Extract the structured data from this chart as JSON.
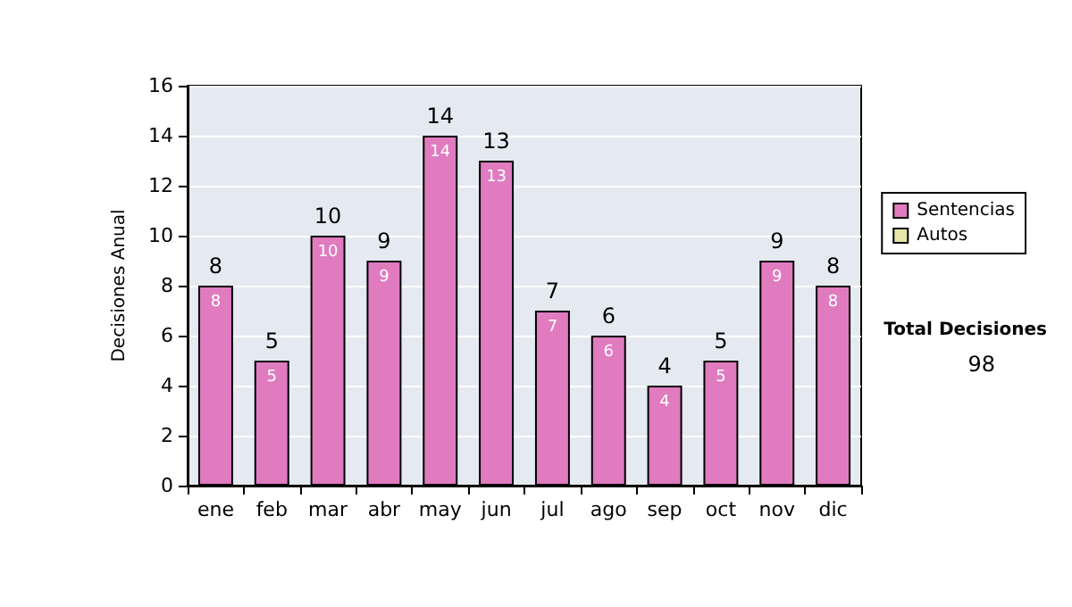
{
  "chart_data": {
    "type": "bar",
    "ylabel": "Decisiones Anual",
    "categories": [
      "ene",
      "feb",
      "mar",
      "abr",
      "may",
      "jun",
      "jul",
      "ago",
      "sep",
      "oct",
      "nov",
      "dic"
    ],
    "series": [
      {
        "name": "Sentencias",
        "color": "#e07bc0",
        "values": [
          8,
          5,
          10,
          9,
          14,
          13,
          7,
          6,
          4,
          5,
          9,
          8
        ],
        "value_labels": [
          "8",
          "5",
          "10",
          "9",
          "14",
          "13",
          "7",
          "6",
          "4",
          "5",
          "9",
          "8"
        ]
      },
      {
        "name": "Autos",
        "color": "#e6e6a8",
        "values": [
          0,
          0,
          0,
          0,
          0,
          0,
          0,
          0,
          0,
          0,
          0,
          0
        ]
      }
    ],
    "stacked": true,
    "totals": [
      "8",
      "5",
      "10",
      "9",
      "14",
      "13",
      "7",
      "6",
      "4",
      "5",
      "9",
      "8"
    ],
    "ylim": [
      0,
      16
    ],
    "yticks": [
      0,
      2,
      4,
      6,
      8,
      10,
      12,
      14,
      16
    ],
    "grid": "y",
    "legend": "right",
    "annotations": [
      "Total Decisiones",
      "98"
    ]
  }
}
